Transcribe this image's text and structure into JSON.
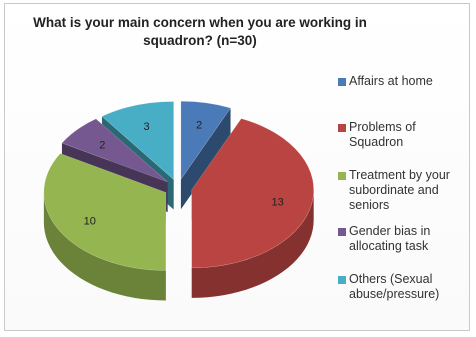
{
  "chart_data": {
    "type": "pie",
    "title": "What is your main concern when you are working in squadron? (n=30)",
    "exploded": true,
    "three_d": true,
    "legend_position": "right",
    "slices": [
      {
        "label": "Affairs at home",
        "value": 2,
        "color": "#4a7ab7"
      },
      {
        "label": "Problems of Squadron",
        "value": 13,
        "color": "#b94441"
      },
      {
        "label": "Treatment by your subordinate and seniors",
        "value": 10,
        "color": "#94b54f"
      },
      {
        "label": "Gender bias in allocating task",
        "value": 2,
        "color": "#75588f"
      },
      {
        "label": "Others (Sexual abuse/pressure)",
        "value": 3,
        "color": "#48aec5"
      }
    ]
  },
  "legend": {
    "items": [
      {
        "lines": [
          "Affairs at home"
        ],
        "color": "#4a7ab7"
      },
      {
        "lines": [
          "Problems of",
          "Squadron"
        ],
        "color": "#b94441"
      },
      {
        "lines": [
          "Treatment by  your",
          "subordinate and",
          "seniors"
        ],
        "color": "#94b54f"
      },
      {
        "lines": [
          "Gender bias in",
          "allocating task"
        ],
        "color": "#75588f"
      },
      {
        "lines": [
          "Others (Sexual",
          "abuse/pressure)"
        ],
        "color": "#48aec5"
      }
    ]
  }
}
